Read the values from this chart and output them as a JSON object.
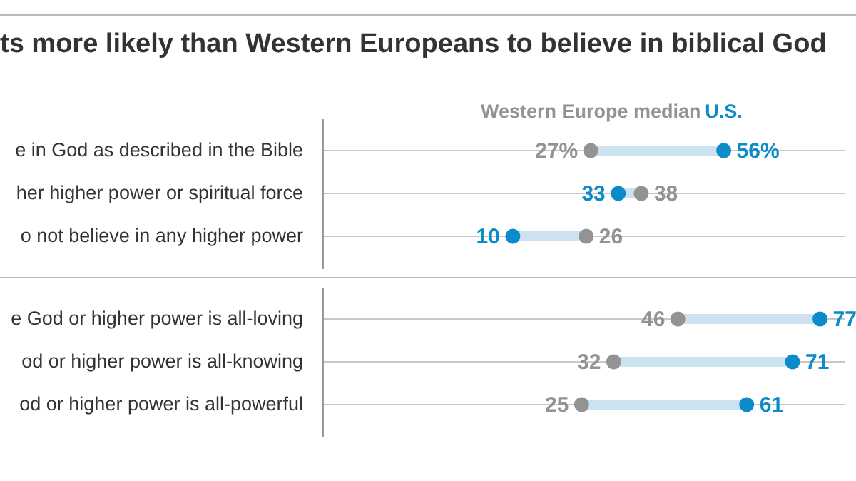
{
  "chart_data": [
    {
      "type": "scatter",
      "title": "ts more likely than Western Europeans to believe in biblical God",
      "orientation": "horizontal",
      "categories": [
        "e in God as described in the Bible",
        "her higher power or spiritual force",
        "o not believe in any higher power"
      ],
      "series": [
        {
          "name": "Western Europe median",
          "color": "#939393",
          "values": [
            27,
            38,
            26
          ],
          "value_labels": [
            "27%",
            "38",
            "26"
          ]
        },
        {
          "name": "U.S.",
          "color": "#0b8bc9",
          "values": [
            56,
            33,
            10
          ],
          "value_labels": [
            "56%",
            "33",
            "10"
          ]
        }
      ],
      "grid": "y",
      "tick_labels": "y",
      "marker": "circle"
    },
    {
      "type": "scatter",
      "orientation": "horizontal",
      "categories": [
        "e God or higher power is all-loving",
        "od or higher power is all-knowing",
        "od or higher power is all-powerful"
      ],
      "series": [
        {
          "color": "#939393",
          "values": [
            46,
            32,
            25
          ],
          "value_labels": [
            "46",
            "32",
            "25"
          ]
        },
        {
          "color": "#0b8bc9",
          "values": [
            77,
            71,
            61
          ],
          "value_labels": [
            "77",
            "71",
            "61"
          ]
        }
      ],
      "grid": "y",
      "tick_labels": "y",
      "marker": "circle"
    }
  ]
}
